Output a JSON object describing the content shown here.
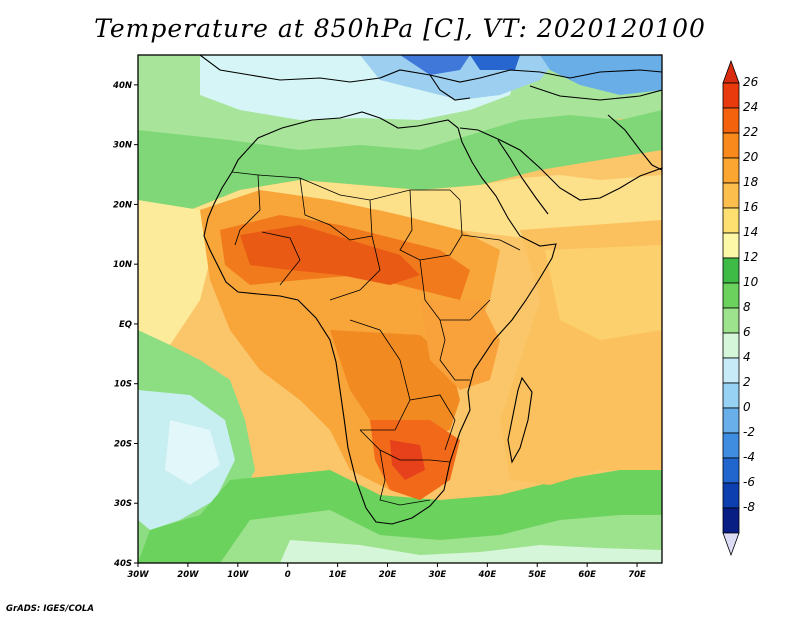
{
  "title": "Temperature at 850hPa [C], VT: 2020120100",
  "footer": "GrADS: IGES/COLA",
  "map": {
    "lon_range": [
      -30,
      75
    ],
    "lat_range": [
      -40,
      45
    ],
    "lon_ticks": [
      {
        "lon": -30,
        "label": "30W"
      },
      {
        "lon": -20,
        "label": "20W"
      },
      {
        "lon": -10,
        "label": "10W"
      },
      {
        "lon": 0,
        "label": "0"
      },
      {
        "lon": 10,
        "label": "10E"
      },
      {
        "lon": 20,
        "label": "20E"
      },
      {
        "lon": 30,
        "label": "30E"
      },
      {
        "lon": 40,
        "label": "40E"
      },
      {
        "lon": 50,
        "label": "50E"
      },
      {
        "lon": 60,
        "label": "60E"
      },
      {
        "lon": 70,
        "label": "70E"
      }
    ],
    "lat_ticks": [
      {
        "lat": 40,
        "label": "40N"
      },
      {
        "lat": 30,
        "label": "30N"
      },
      {
        "lat": 20,
        "label": "20N"
      },
      {
        "lat": 10,
        "label": "10N"
      },
      {
        "lat": 0,
        "label": "EQ"
      },
      {
        "lat": -10,
        "label": "10S"
      },
      {
        "lat": -20,
        "label": "20S"
      },
      {
        "lat": -30,
        "label": "30S"
      },
      {
        "lat": -40,
        "label": "40S"
      }
    ]
  },
  "colorbar": {
    "labels": [
      "26",
      "24",
      "22",
      "20",
      "18",
      "16",
      "14",
      "12",
      "10",
      "8",
      "6",
      "4",
      "2",
      "0",
      "-2",
      "-4",
      "-6",
      "-8"
    ],
    "colors": [
      "#e93a0e",
      "#f4620e",
      "#f8891a",
      "#faa631",
      "#fcbf4d",
      "#fde070",
      "#fcf8a8",
      "#3dbb46",
      "#6bd25e",
      "#9de28d",
      "#d5f6d8",
      "#c7ecf8",
      "#97d1f3",
      "#69afe9",
      "#3f8de0",
      "#2166cf",
      "#0d3fb0",
      "#081e85"
    ],
    "top_triangle_color": "#d92b10",
    "bottom_triangle_color": "#dcdcf6"
  }
}
